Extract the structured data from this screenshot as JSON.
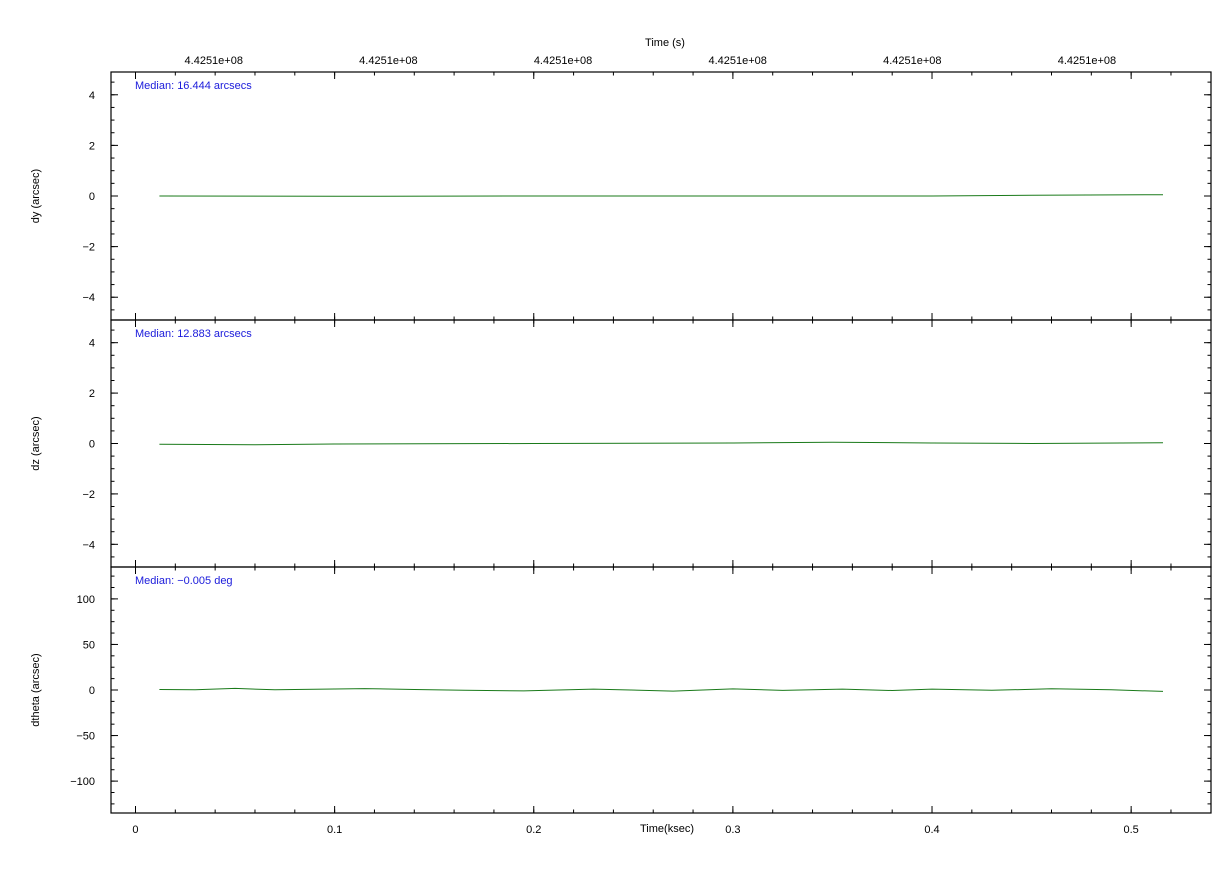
{
  "top_axis": {
    "title": "Time (s)",
    "tick_labels": [
      "4.4251e+08",
      "4.4251e+08",
      "4.4251e+08",
      "4.4251e+08",
      "4.4251e+08",
      "4.4251e+08"
    ]
  },
  "colors": {
    "line": "#1a7a1a",
    "annotation": "#1a1adb",
    "axis": "#000000"
  },
  "chart_data": [
    {
      "type": "line",
      "ylabel": "dy (arcsec)",
      "annotation": "Median: 16.444 arcsecs",
      "xlim": [
        -0.0123,
        0.5401
      ],
      "ylim": [
        -4.9,
        4.9
      ],
      "y_ticks": [
        -4,
        -2,
        0,
        2,
        4
      ],
      "y_tick_labels": [
        "−4",
        "−2",
        "0",
        "2",
        "4"
      ],
      "series": [
        {
          "x": [
            0.012,
            0.1,
            0.2,
            0.3,
            0.4,
            0.45,
            0.516
          ],
          "y": [
            0.0,
            -0.01,
            0.0,
            0.0,
            0.0,
            0.03,
            0.05
          ]
        }
      ]
    },
    {
      "type": "line",
      "ylabel": "dz (arcsec)",
      "annotation": "Median: 12.883 arcsecs",
      "xlim": [
        -0.0123,
        0.5401
      ],
      "ylim": [
        -4.9,
        4.9
      ],
      "y_ticks": [
        -4,
        -2,
        0,
        2,
        4
      ],
      "y_tick_labels": [
        "−4",
        "−2",
        "0",
        "2",
        "4"
      ],
      "series": [
        {
          "x": [
            0.012,
            0.06,
            0.1,
            0.2,
            0.3,
            0.35,
            0.4,
            0.45,
            0.516
          ],
          "y": [
            -0.03,
            -0.05,
            -0.02,
            0.0,
            0.02,
            0.05,
            0.02,
            0.0,
            0.03
          ]
        }
      ]
    },
    {
      "type": "line",
      "ylabel": "dtheta (arcsec)",
      "xlabel": "Time(ksec)",
      "annotation": "Median: −0.005 deg",
      "xlim": [
        -0.0123,
        0.5401
      ],
      "ylim": [
        -135,
        135
      ],
      "y_ticks": [
        -100,
        -50,
        0,
        50,
        100
      ],
      "y_tick_labels": [
        "−100",
        "−50",
        "0",
        "50",
        "100"
      ],
      "x_ticks": [
        0,
        0.1,
        0.2,
        0.3,
        0.4,
        0.5
      ],
      "x_tick_labels": [
        "0",
        "0.1",
        "0.2",
        "0.3",
        "0.4",
        "0.5"
      ],
      "series": [
        {
          "x": [
            0.012,
            0.03,
            0.05,
            0.07,
            0.09,
            0.115,
            0.14,
            0.165,
            0.195,
            0.23,
            0.27,
            0.3,
            0.325,
            0.355,
            0.38,
            0.4,
            0.43,
            0.46,
            0.49,
            0.516
          ],
          "y": [
            0.5,
            0.3,
            1.8,
            0.2,
            0.8,
            1.5,
            0.6,
            -0.3,
            -1.0,
            1.0,
            -1.2,
            1.2,
            -0.4,
            1.0,
            -0.5,
            1.0,
            -0.3,
            1.3,
            0.2,
            -1.5
          ]
        }
      ]
    }
  ]
}
